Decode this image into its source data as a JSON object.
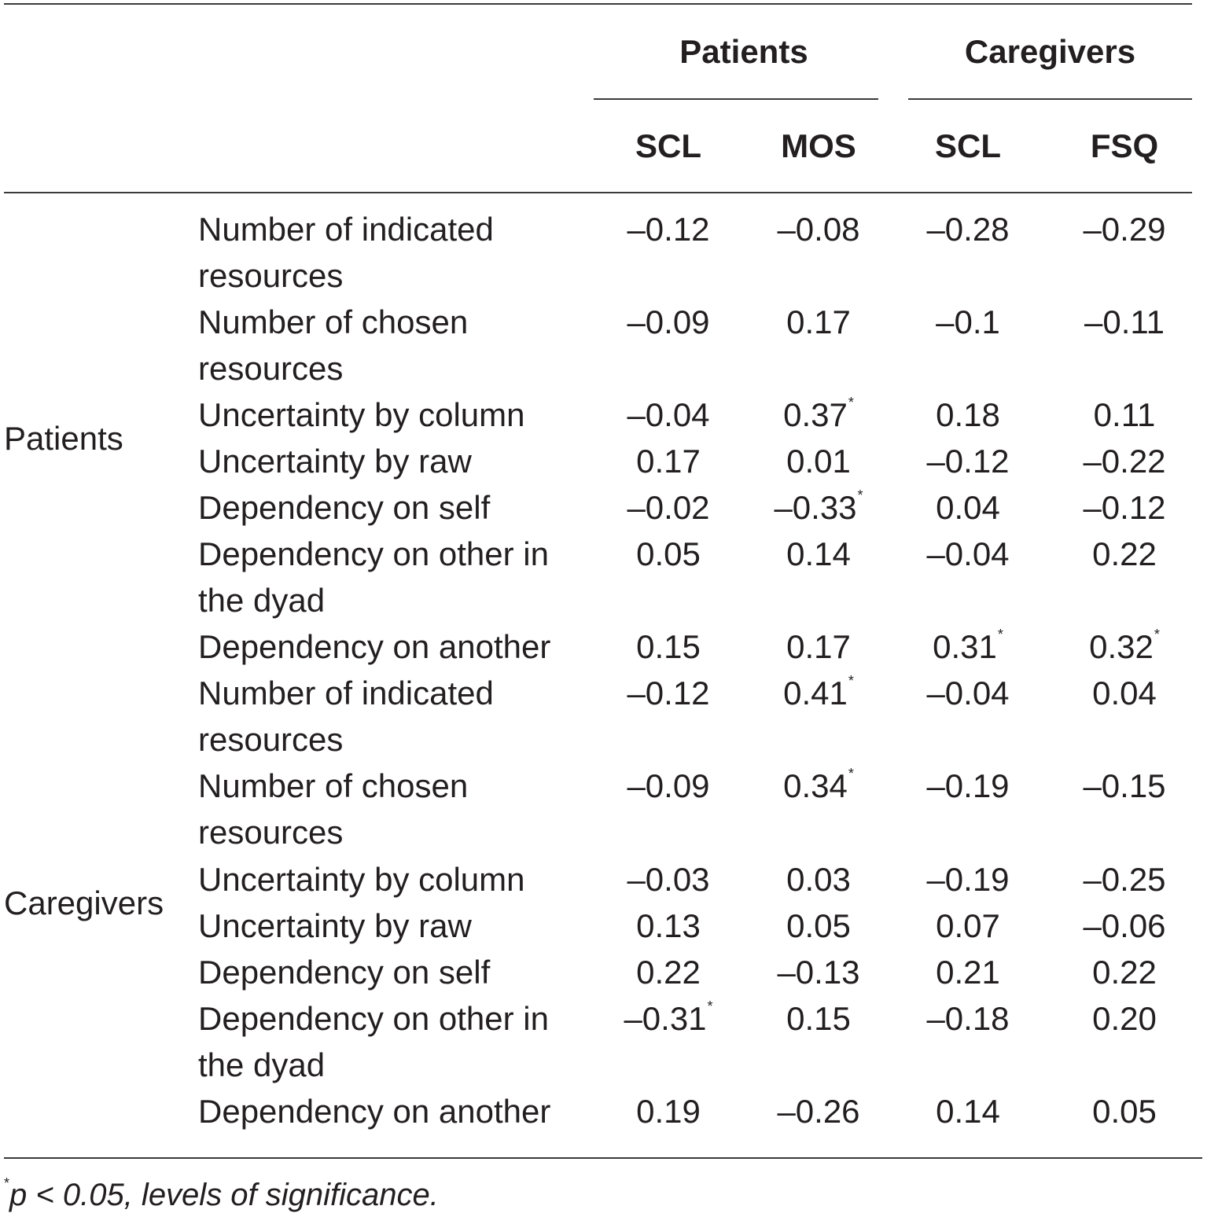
{
  "header": {
    "groups": {
      "patients": "Patients",
      "caregivers": "Caregivers"
    },
    "columns": [
      "SCL",
      "MOS",
      "SCL",
      "FSQ"
    ]
  },
  "sections": {
    "patients": "Patients",
    "caregivers": "Caregivers"
  },
  "rows": [
    {
      "label": "Number of indicated resources",
      "values": [
        "–0.12",
        "–0.08",
        "–0.28",
        "–0.29"
      ],
      "sig": [
        "",
        "",
        "",
        ""
      ]
    },
    {
      "label": "Number of chosen resources",
      "values": [
        "–0.09",
        "0.17",
        "–0.1",
        "–0.11"
      ],
      "sig": [
        "",
        "",
        "",
        ""
      ]
    },
    {
      "label": "Uncertainty by column",
      "values": [
        "–0.04",
        "0.37",
        "0.18",
        "0.11"
      ],
      "sig": [
        "",
        "*",
        "",
        ""
      ]
    },
    {
      "label": "Uncertainty by raw",
      "values": [
        "0.17",
        "0.01",
        "–0.12",
        "–0.22"
      ],
      "sig": [
        "",
        "",
        "",
        ""
      ]
    },
    {
      "label": "Dependency on self",
      "values": [
        "–0.02",
        "–0.33",
        "0.04",
        "–0.12"
      ],
      "sig": [
        "",
        "*",
        "",
        ""
      ]
    },
    {
      "label": "Dependency on other in the dyad",
      "values": [
        "0.05",
        "0.14",
        "–0.04",
        "0.22"
      ],
      "sig": [
        "",
        "",
        "",
        ""
      ]
    },
    {
      "label": "Dependency on another",
      "values": [
        "0.15",
        "0.17",
        "0.31",
        "0.32"
      ],
      "sig": [
        "",
        "",
        "*",
        "*"
      ]
    },
    {
      "label": "Number of indicated resources",
      "values": [
        "–0.12",
        "0.41",
        "–0.04",
        "0.04"
      ],
      "sig": [
        "",
        "*",
        "",
        ""
      ]
    },
    {
      "label": "Number of chosen resources",
      "values": [
        "–0.09",
        "0.34",
        "–0.19",
        "–0.15"
      ],
      "sig": [
        "",
        "*",
        "",
        ""
      ]
    },
    {
      "label": "Uncertainty by column",
      "values": [
        "–0.03",
        "0.03",
        "–0.19",
        "–0.25"
      ],
      "sig": [
        "",
        "",
        "",
        ""
      ]
    },
    {
      "label": "Uncertainty by raw",
      "values": [
        "0.13",
        "0.05",
        "0.07",
        "–0.06"
      ],
      "sig": [
        "",
        "",
        "",
        ""
      ]
    },
    {
      "label": "Dependency on self",
      "values": [
        "0.22",
        "–0.13",
        "0.21",
        "0.22"
      ],
      "sig": [
        "",
        "",
        "",
        ""
      ]
    },
    {
      "label": "Dependency on other in the dyad",
      "values": [
        "–0.31",
        "0.15",
        "–0.18",
        "0.20"
      ],
      "sig": [
        "*",
        "",
        "",
        ""
      ]
    },
    {
      "label": "Dependency on another",
      "values": [
        "0.19",
        "–0.26",
        "0.14",
        "0.05"
      ],
      "sig": [
        "",
        "",
        "",
        ""
      ]
    }
  ],
  "footnote": {
    "mark": "*",
    "text": "p < 0.05, levels of significance."
  }
}
